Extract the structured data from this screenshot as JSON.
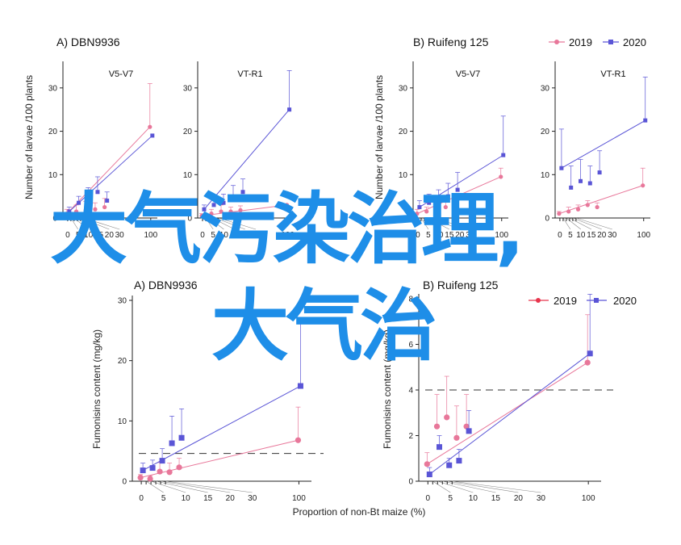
{
  "overlay": {
    "line1": "大气污染治理,",
    "line2": "大气治"
  },
  "colors": {
    "s2019": "#e8779a",
    "s2020": "#5a55d6",
    "s2019_leg2": "#e8344c"
  },
  "legends": [
    {
      "items": [
        {
          "name": "2019",
          "marker": "circle"
        },
        {
          "name": "2020",
          "marker": "square"
        }
      ]
    },
    {
      "items": [
        {
          "name": "2019",
          "marker": "circle"
        },
        {
          "name": "2020",
          "marker": "square"
        }
      ]
    }
  ],
  "chart_data": [
    {
      "type": "line",
      "title": "A)  DBN9936",
      "subtitle": "V5-V7",
      "ylabel": "Number of larvae /100 plants",
      "xlabel": "",
      "xticks": [
        "0",
        "5",
        "10",
        "15",
        "20",
        "30",
        "100"
      ],
      "yticks": [
        0,
        10,
        20,
        30
      ],
      "ylim": [
        0,
        35
      ],
      "series": [
        {
          "name": "2019",
          "x": [
            0,
            5,
            10,
            15,
            20,
            100
          ],
          "y": [
            1,
            1.5,
            1.8,
            2,
            2.5,
            21
          ],
          "err": [
            1,
            1.5,
            2,
            1.5,
            2,
            10
          ]
        },
        {
          "name": "2020",
          "x": [
            0,
            5,
            10,
            15,
            20,
            100
          ],
          "y": [
            1.5,
            3.5,
            4,
            6,
            4,
            19
          ],
          "err": [
            1,
            1.5,
            3,
            3.5,
            2,
            0
          ]
        }
      ]
    },
    {
      "type": "line",
      "title": "",
      "subtitle": "VT-R1",
      "ylabel": "",
      "xlabel": "",
      "xticks": [
        "0",
        "5",
        "10",
        "15",
        "20",
        "30",
        "100"
      ],
      "yticks": [
        0,
        10,
        20,
        30
      ],
      "ylim": [
        0,
        35
      ],
      "series": [
        {
          "name": "2019",
          "x": [
            0,
            5,
            10,
            15,
            20,
            100
          ],
          "y": [
            0.5,
            1,
            1.5,
            1.5,
            1.8,
            3
          ],
          "err": [
            0.5,
            1,
            1.5,
            1,
            1,
            0
          ]
        },
        {
          "name": "2020",
          "x": [
            0,
            5,
            10,
            15,
            20,
            100
          ],
          "y": [
            2,
            3,
            3.5,
            4.5,
            6,
            25
          ],
          "err": [
            1,
            2,
            2,
            3,
            3,
            9
          ]
        }
      ]
    },
    {
      "type": "line",
      "title": "B)  Ruifeng 125",
      "subtitle": "V5-V7",
      "ylabel": "Number of larvae /100 plants",
      "xlabel": "",
      "xticks": [
        "0",
        "5",
        "10",
        "15",
        "20",
        "30",
        "100"
      ],
      "yticks": [
        0,
        10,
        20,
        30
      ],
      "ylim": [
        0,
        35
      ],
      "series": [
        {
          "name": "2019",
          "x": [
            0,
            5,
            10,
            15,
            20,
            100
          ],
          "y": [
            1,
            1.5,
            2,
            2.5,
            3,
            9.5
          ],
          "err": [
            1,
            1,
            1.5,
            1.5,
            2,
            2
          ]
        },
        {
          "name": "2020",
          "x": [
            0,
            5,
            10,
            15,
            20,
            100
          ],
          "y": [
            2.5,
            3.5,
            4,
            5,
            6.5,
            14.5
          ],
          "err": [
            1.5,
            2,
            2.5,
            3,
            4,
            9
          ]
        }
      ]
    },
    {
      "type": "line",
      "title": "",
      "subtitle": "VT-R1",
      "ylabel": "",
      "xlabel": "",
      "xticks": [
        "0",
        "5",
        "10",
        "15",
        "20",
        "30",
        "100"
      ],
      "yticks": [
        0,
        10,
        20,
        30
      ],
      "ylim": [
        0,
        35
      ],
      "series": [
        {
          "name": "2019",
          "x": [
            0,
            5,
            10,
            15,
            20,
            100
          ],
          "y": [
            1,
            1.5,
            2,
            3,
            2.5,
            7.5
          ],
          "err": [
            0.5,
            1,
            1,
            1,
            1,
            4
          ]
        },
        {
          "name": "2020",
          "x": [
            0,
            5,
            10,
            15,
            20,
            100
          ],
          "y": [
            11.5,
            7,
            8.5,
            8,
            10.5,
            22.5
          ],
          "err": [
            9,
            5,
            5,
            4,
            5,
            10
          ]
        }
      ]
    },
    {
      "type": "line",
      "title": "A)  DBN9936",
      "subtitle": "",
      "ylabel": "Fumonisins content (mg/kg)",
      "xlabel": "Proportion of non-Bt maize (%)",
      "xticks": [
        "0",
        "5",
        "10",
        "15",
        "20",
        "30",
        "100"
      ],
      "yticks": [
        0,
        10,
        20,
        30
      ],
      "ylim": [
        0,
        30
      ],
      "threshold": 4.6,
      "series": [
        {
          "name": "2019",
          "x": [
            0,
            2,
            4,
            6,
            8,
            100
          ],
          "y": [
            0.6,
            0.4,
            1.6,
            1.5,
            2.3,
            6.8
          ],
          "err": [
            0.5,
            0.5,
            1.5,
            1.5,
            1.5,
            5.5
          ]
        },
        {
          "name": "2020",
          "x": [
            0,
            2,
            4,
            6,
            8,
            100
          ],
          "y": [
            1.8,
            2.2,
            3.4,
            6.3,
            7.2,
            15.8
          ],
          "err": [
            1.2,
            1.3,
            2,
            4.5,
            4.8,
            11
          ]
        }
      ]
    },
    {
      "type": "line",
      "title": "B)  Ruifeng 125",
      "subtitle": "",
      "ylabel": "Fumonisins content (mg/kg)",
      "xlabel": "",
      "xticks": [
        "0",
        "5",
        "10",
        "15",
        "20",
        "30",
        "100"
      ],
      "yticks": [
        0,
        2,
        4,
        6,
        8
      ],
      "ylim": [
        0,
        8
      ],
      "threshold": 4,
      "series": [
        {
          "name": "2019",
          "x": [
            0,
            2,
            4,
            6,
            8,
            100
          ],
          "y": [
            0.75,
            2.4,
            2.8,
            1.9,
            2.4,
            5.2
          ],
          "err": [
            0.5,
            1.4,
            1.8,
            1.4,
            1.4,
            2.1
          ]
        },
        {
          "name": "2020",
          "x": [
            0,
            2,
            4,
            6,
            8,
            100
          ],
          "y": [
            0.3,
            1.5,
            0.7,
            0.9,
            2.2,
            5.6
          ],
          "err": [
            0.3,
            0.5,
            0.3,
            0.5,
            0.9,
            2.6
          ]
        }
      ]
    }
  ]
}
